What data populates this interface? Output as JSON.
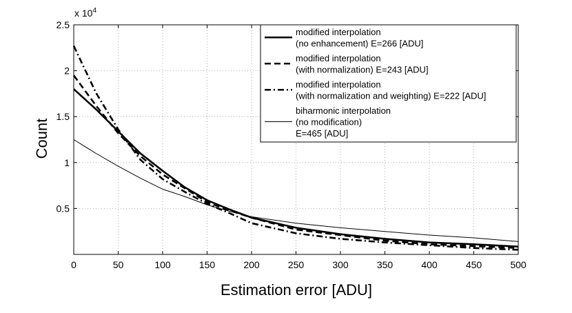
{
  "chart_data": {
    "type": "line",
    "xlabel": "Estimation error [ADU]",
    "ylabel": "Count",
    "y_multiplier_label": "x 10",
    "y_multiplier_exp": "4",
    "xlim": [
      0,
      500
    ],
    "ylim": [
      0,
      25000
    ],
    "x_ticks": [
      0,
      50,
      100,
      150,
      200,
      250,
      300,
      350,
      400,
      450,
      500
    ],
    "x_tick_labels": [
      "0",
      "50",
      "100",
      "150",
      "200",
      "250",
      "300",
      "350",
      "400",
      "450",
      "500"
    ],
    "y_ticks": [
      5000,
      10000,
      15000,
      20000,
      25000
    ],
    "y_tick_labels": [
      "0.5",
      "1",
      "1.5",
      "2",
      "2.5"
    ],
    "grid": true,
    "legend_position": "top-right",
    "series": [
      {
        "name": "modified interpolation",
        "legend_lines": [
          "modified interpolation",
          "(no enhancement) E=266 [ADU]"
        ],
        "style": "solid-thick",
        "x": [
          0,
          25,
          50,
          75,
          100,
          125,
          150,
          175,
          200,
          250,
          300,
          350,
          400,
          450,
          500
        ],
        "y": [
          18000,
          15800,
          13400,
          11000,
          9100,
          7300,
          5900,
          4900,
          4000,
          2900,
          2200,
          1700,
          1300,
          1100,
          850
        ]
      },
      {
        "name": "modified interpolation",
        "legend_lines": [
          "modified interpolation",
          "(with normalization) E=243 [ADU]"
        ],
        "style": "dashed",
        "x": [
          0,
          25,
          50,
          75,
          100,
          125,
          150,
          175,
          200,
          250,
          300,
          350,
          400,
          450,
          500
        ],
        "y": [
          19500,
          16200,
          13200,
          10700,
          8700,
          7200,
          5700,
          4800,
          4000,
          2700,
          2100,
          1500,
          1100,
          900,
          700
        ]
      },
      {
        "name": "modified interpolation",
        "legend_lines": [
          "modified interpolation",
          "(with normalization and weighting) E=222 [ADU]"
        ],
        "style": "dashdot",
        "x": [
          0,
          25,
          50,
          75,
          100,
          125,
          150,
          175,
          200,
          250,
          300,
          350,
          400,
          450,
          500
        ],
        "y": [
          22700,
          17600,
          13600,
          10300,
          8200,
          6800,
          5500,
          4500,
          3400,
          2300,
          1700,
          1300,
          1000,
          700,
          500
        ]
      },
      {
        "name": "biharmonic interpolation",
        "legend_lines": [
          "biharmonic interpolation",
          "(no modification)",
          "E=465 [ADU]"
        ],
        "style": "solid-thin",
        "x": [
          0,
          25,
          50,
          75,
          100,
          125,
          150,
          175,
          200,
          250,
          300,
          350,
          400,
          450,
          500
        ],
        "y": [
          12500,
          11000,
          9600,
          8300,
          7100,
          6300,
          5400,
          4700,
          4100,
          3400,
          2900,
          2500,
          2100,
          1800,
          1400
        ]
      }
    ]
  }
}
